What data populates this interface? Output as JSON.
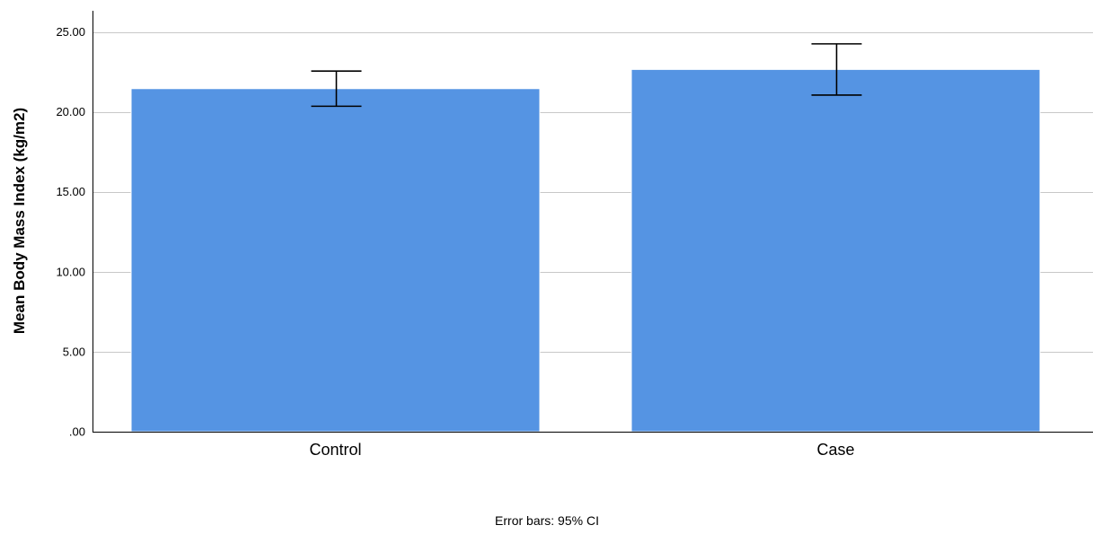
{
  "chart_data": {
    "type": "bar",
    "categories": [
      "Control",
      "Case"
    ],
    "values": [
      21.45,
      22.65
    ],
    "error_bars": [
      {
        "low": 20.35,
        "high": 22.55
      },
      {
        "low": 21.05,
        "high": 24.25
      }
    ],
    "title": "",
    "xlabel": "",
    "ylabel": "Mean Body Mass Index (kg/m2)",
    "ylim": [
      0,
      26
    ],
    "yticks": [
      0,
      5,
      10,
      15,
      20,
      25
    ],
    "ytick_labels": [
      ".00",
      "5.00",
      "10.00",
      "15.00",
      "20.00",
      "25.00"
    ],
    "grid": true,
    "bar_color": "#5594e3",
    "grid_color": "#c8c8c8",
    "footnote": "Error bars: 95% CI"
  }
}
